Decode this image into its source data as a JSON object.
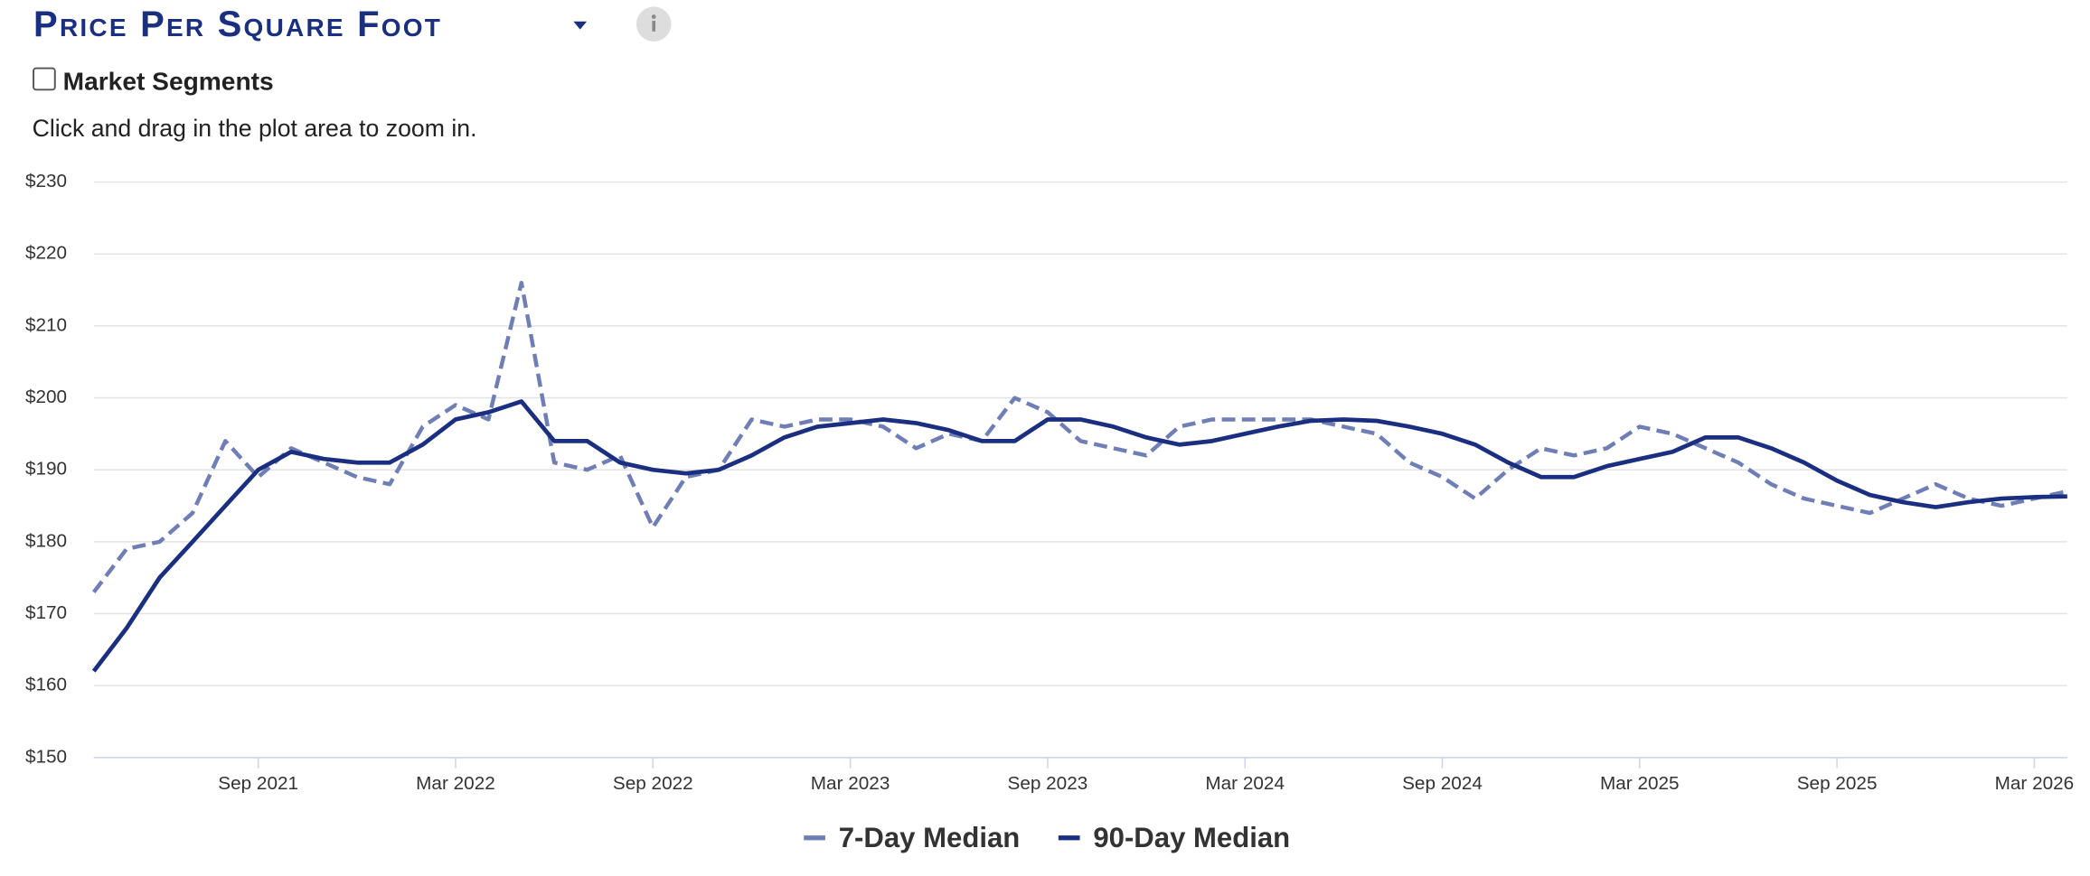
{
  "title": "Price Per Square Foot",
  "checkbox_label": "Market Segments",
  "hint": "Click and drag in the plot area to zoom in.",
  "chart_data": {
    "type": "line",
    "x": [
      "2021-04",
      "2021-05",
      "2021-06",
      "2021-07",
      "2021-08",
      "2021-09",
      "2021-10",
      "2021-11",
      "2021-12",
      "2022-01",
      "2022-02",
      "2022-03",
      "2022-04",
      "2022-05",
      "2022-06",
      "2022-07",
      "2022-08",
      "2022-09",
      "2022-10",
      "2022-11",
      "2022-12",
      "2023-01",
      "2023-02",
      "2023-03",
      "2023-04",
      "2023-05",
      "2023-06",
      "2023-07",
      "2023-08",
      "2023-09",
      "2023-10",
      "2023-11",
      "2023-12",
      "2024-01",
      "2024-02",
      "2024-03",
      "2024-04",
      "2024-05",
      "2024-06",
      "2024-07",
      "2024-08",
      "2024-09",
      "2024-10",
      "2024-11",
      "2024-12",
      "2025-01",
      "2025-02",
      "2025-03",
      "2025-04",
      "2025-05",
      "2025-06",
      "2025-07",
      "2025-08",
      "2025-09",
      "2025-10",
      "2025-11",
      "2025-12",
      "2026-01",
      "2026-02",
      "2026-03",
      "2026-04"
    ],
    "series": [
      {
        "name": "7-Day Median",
        "color": "#6f7fb5",
        "dashed": true,
        "values": [
          173,
          179,
          180,
          184,
          194,
          189,
          193,
          191,
          189,
          188,
          196,
          199,
          197,
          216,
          191,
          190,
          192,
          182,
          189,
          190,
          197,
          196,
          197,
          197,
          196,
          193,
          195,
          194,
          200,
          198,
          194,
          193,
          192,
          196,
          197,
          197,
          197,
          197,
          196,
          195,
          191,
          189,
          186,
          190,
          193,
          192,
          193,
          196,
          195,
          193,
          191,
          188,
          186,
          185,
          184,
          186,
          188,
          186,
          185,
          186,
          187
        ]
      },
      {
        "name": "90-Day Median",
        "color": "#1a2f80",
        "dashed": false,
        "values": [
          162,
          168,
          175,
          180,
          185,
          190,
          192.5,
          191.5,
          191,
          191,
          193.5,
          197,
          198,
          199.5,
          194,
          194,
          191,
          190,
          189.5,
          190,
          192,
          194.5,
          196,
          196.5,
          197,
          196.5,
          195.5,
          194,
          194,
          197,
          197,
          196,
          194.5,
          193.5,
          194,
          195,
          196,
          196.8,
          197,
          196.8,
          196,
          195,
          193.5,
          191,
          189,
          189,
          190.5,
          191.5,
          192.5,
          194.5,
          194.5,
          193,
          191,
          188.5,
          186.5,
          185.5,
          184.8,
          185.5,
          186,
          186.2,
          186.3
        ]
      }
    ],
    "xlim": [
      "2021-04",
      "2026-04"
    ],
    "xticks": [
      {
        "value": "2021-09",
        "label": "Sep 2021"
      },
      {
        "value": "2022-03",
        "label": "Mar 2022"
      },
      {
        "value": "2022-09",
        "label": "Sep 2022"
      },
      {
        "value": "2023-03",
        "label": "Mar 2023"
      },
      {
        "value": "2023-09",
        "label": "Sep 2023"
      },
      {
        "value": "2024-03",
        "label": "Mar 2024"
      },
      {
        "value": "2024-09",
        "label": "Sep 2024"
      },
      {
        "value": "2025-03",
        "label": "Mar 2025"
      },
      {
        "value": "2025-09",
        "label": "Sep 2025"
      },
      {
        "value": "2026-03",
        "label": "Mar 2026"
      }
    ],
    "ylim": [
      150,
      230
    ],
    "yticks": [
      {
        "value": 150,
        "label": "$150"
      },
      {
        "value": 160,
        "label": "$160"
      },
      {
        "value": 170,
        "label": "$170"
      },
      {
        "value": 180,
        "label": "$180"
      },
      {
        "value": 190,
        "label": "$190"
      },
      {
        "value": 200,
        "label": "$200"
      },
      {
        "value": 210,
        "label": "$210"
      },
      {
        "value": 220,
        "label": "$220"
      },
      {
        "value": 230,
        "label": "$230"
      }
    ],
    "grid": true,
    "legend": "bottom"
  }
}
